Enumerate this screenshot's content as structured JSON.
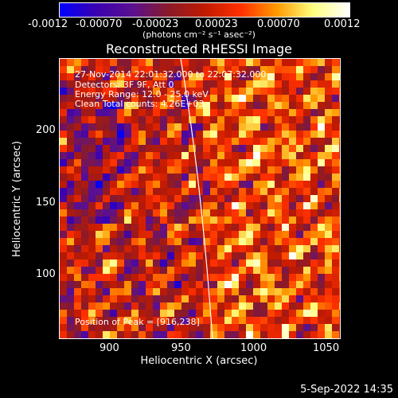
{
  "colorbar": {
    "tick_labels": [
      "-0.0012",
      "-0.00070",
      "-0.00023",
      "0.00023",
      "0.00070",
      "0.0012"
    ],
    "units": "(photons cm⁻² s⁻¹ asec⁻²)",
    "colors": [
      "#0000ff",
      "#3a00b0",
      "#5a1090",
      "#8a1a2a",
      "#c01a00",
      "#ff3000",
      "#ff9a00",
      "#ffff80",
      "#ffffff"
    ]
  },
  "title": "Reconstructed RHESSI Image",
  "annotations": {
    "time_range": "27-Nov-2014 22:01:32.000 to 22:07:32.000",
    "detectors": "Detectors: 3F 9F, Att 0",
    "energy_range": "Energy Range: 12.0 - 25.0 keV",
    "method_counts": "Clean     Total counts: 4.26E+03",
    "peak_position": "Position of Peak = [916,238]"
  },
  "axes": {
    "xlabel": "Heliocentric X (arcsec)",
    "ylabel": "Heliocentric Y (arcsec)",
    "x_ticks": [
      "900",
      "950",
      "1000",
      "1050"
    ],
    "y_ticks": [
      "100",
      "150",
      "200"
    ],
    "xlim": [
      865,
      1060
    ],
    "ylim": [
      55,
      250
    ]
  },
  "timestamp": "5-Sep-2022 14:35",
  "palette": {
    "background": "#000000",
    "foreground": "#ffffff",
    "limb_line": "#ffffff"
  }
}
